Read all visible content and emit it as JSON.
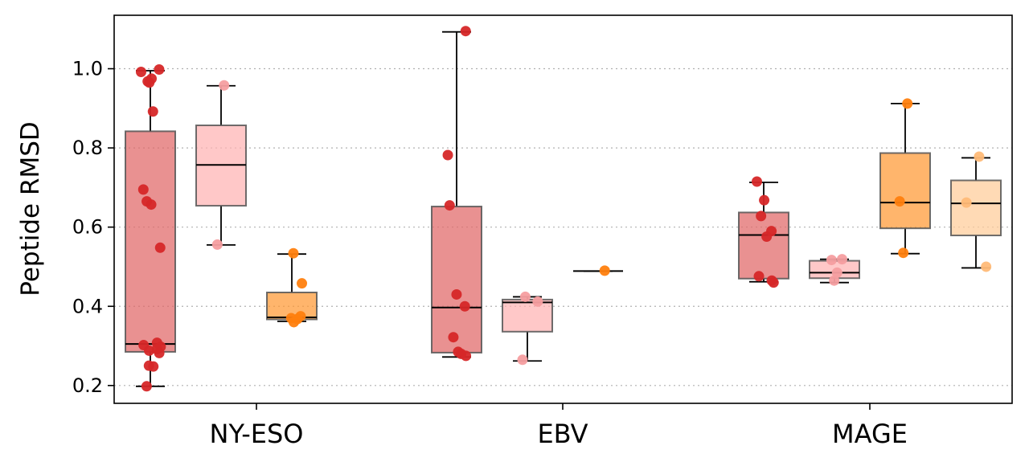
{
  "chart_data": {
    "type": "box",
    "ylabel": "Peptide RMSD",
    "xlabel": "",
    "categories": [
      "NY-ESO",
      "EBV",
      "MAGE"
    ],
    "ylim": [
      0.155,
      1.135
    ],
    "yticks": [
      "0.2",
      "0.4",
      "0.6",
      "0.8",
      "1.0"
    ],
    "grid": "horizontal-dotted",
    "box_style": {
      "box_colors": [
        "#e06666",
        "#ffb3b3",
        "#ff9933",
        "#ffcc99"
      ],
      "point_colors": [
        "#d62728",
        "#f59ea0",
        "#ff7f0e",
        "#ffbb78"
      ]
    },
    "groups": [
      {
        "category": "NY-ESO",
        "boxes": [
          {
            "slot": 0,
            "stats": {
              "low": 0.198,
              "q1": 0.285,
              "median": 0.305,
              "q3": 0.842,
              "high": 0.995
            },
            "points": [
              0.998,
              0.992,
              0.975,
              0.968,
              0.965,
              0.892,
              0.695,
              0.665,
              0.657,
              0.548,
              0.308,
              0.302,
              0.298,
              0.292,
              0.288,
              0.282,
              0.25,
              0.248,
              0.198
            ]
          },
          {
            "slot": 1,
            "stats": {
              "low": 0.555,
              "q1": 0.654,
              "median": 0.757,
              "q3": 0.857,
              "high": 0.957
            },
            "points": [
              0.958,
              0.556
            ]
          },
          {
            "slot": 2,
            "stats": {
              "low": 0.362,
              "q1": 0.367,
              "median": 0.372,
              "q3": 0.435,
              "high": 0.532
            },
            "points": [
              0.534,
              0.458,
              0.375,
              0.37,
              0.368,
              0.36
            ]
          }
        ]
      },
      {
        "category": "EBV",
        "boxes": [
          {
            "slot": 0,
            "stats": {
              "low": 0.272,
              "q1": 0.283,
              "median": 0.397,
              "q3": 0.652,
              "high": 1.093
            },
            "points": [
              1.095,
              0.782,
              0.655,
              0.43,
              0.4,
              0.322,
              0.285,
              0.28,
              0.275
            ]
          },
          {
            "slot": 1,
            "stats": {
              "low": 0.262,
              "q1": 0.336,
              "median": 0.41,
              "q3": 0.417,
              "high": 0.424
            },
            "points": [
              0.424,
              0.412,
              0.265
            ]
          },
          {
            "slot": 2,
            "stats": {
              "low": 0.489,
              "q1": 0.489,
              "median": 0.489,
              "q3": 0.489,
              "high": 0.489
            },
            "points": [
              0.49
            ]
          }
        ]
      },
      {
        "category": "MAGE",
        "boxes": [
          {
            "slot": 0,
            "stats": {
              "low": 0.462,
              "q1": 0.47,
              "median": 0.58,
              "q3": 0.637,
              "high": 0.713
            },
            "points": [
              0.715,
              0.668,
              0.628,
              0.59,
              0.576,
              0.476,
              0.465,
              0.46
            ]
          },
          {
            "slot": 1,
            "stats": {
              "low": 0.46,
              "q1": 0.471,
              "median": 0.485,
              "q3": 0.515,
              "high": 0.519
            },
            "points": [
              0.519,
              0.517,
              0.485,
              0.465
            ]
          },
          {
            "slot": 2,
            "stats": {
              "low": 0.533,
              "q1": 0.597,
              "median": 0.662,
              "q3": 0.787,
              "high": 0.912
            },
            "points": [
              0.912,
              0.665,
              0.535
            ]
          },
          {
            "slot": 3,
            "stats": {
              "low": 0.497,
              "q1": 0.579,
              "median": 0.66,
              "q3": 0.718,
              "high": 0.775
            },
            "points": [
              0.778,
              0.662,
              0.5
            ]
          }
        ]
      }
    ]
  }
}
